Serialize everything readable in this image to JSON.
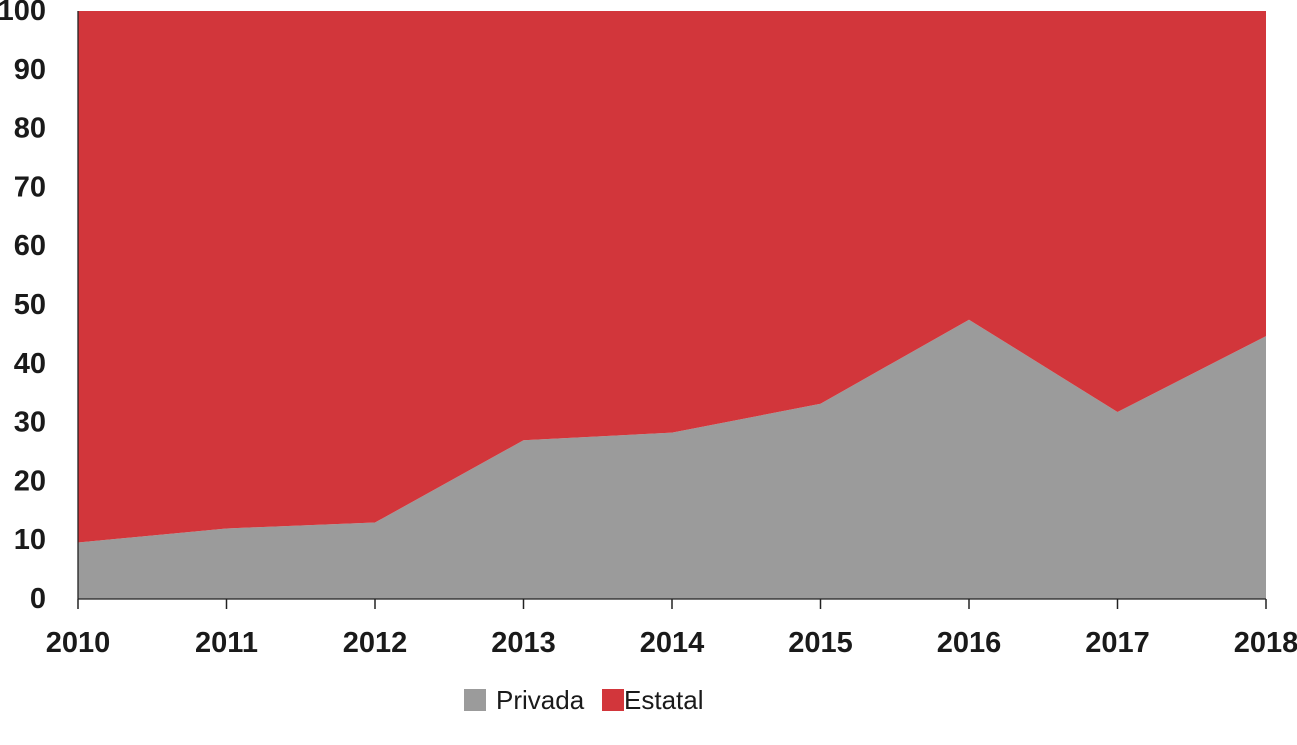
{
  "chart_data": {
    "type": "area",
    "stacked": true,
    "percent": true,
    "x": [
      "2010",
      "2011",
      "2012",
      "2013",
      "2014",
      "2015",
      "2016",
      "2017",
      "2018"
    ],
    "series": [
      {
        "name": "Privada",
        "color": "#9b9b9b",
        "values": [
          9.6,
          12.0,
          13.0,
          27.0,
          28.3,
          33.2,
          47.5,
          31.8,
          44.7
        ]
      },
      {
        "name": "Estatal",
        "color": "#d2363b",
        "values": [
          90.4,
          88.0,
          87.0,
          73.0,
          71.7,
          66.8,
          52.5,
          68.2,
          55.3
        ]
      }
    ],
    "ylim": [
      0,
      100
    ],
    "yticks": [
      "0",
      "10",
      "20",
      "30",
      "40",
      "50",
      "60",
      "70",
      "80",
      "90",
      "100"
    ],
    "grid": false,
    "legend_position": "bottom-center",
    "title": "",
    "xlabel": "",
    "ylabel": ""
  }
}
